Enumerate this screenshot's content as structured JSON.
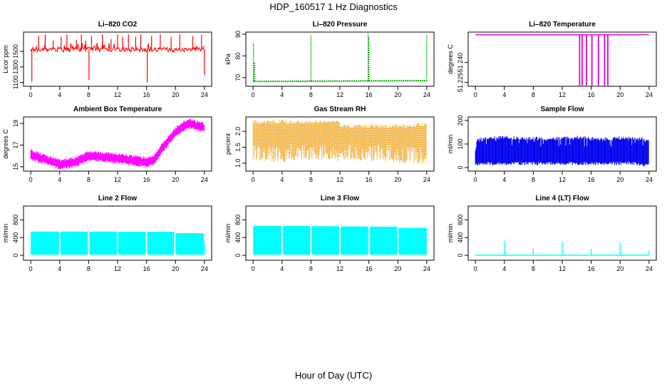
{
  "figure": {
    "title": "HDP_160517  1 Hz Diagnostics",
    "xlabel": "Hour of Day (UTC)"
  },
  "chart_data": [
    {
      "type": "line",
      "title": "Li–820 CO2",
      "ylabel": "Licor ppm",
      "color": "#ff0000",
      "xlim": [
        -1,
        25
      ],
      "ylim": [
        1050,
        1750
      ],
      "xticks": [
        0,
        4,
        8,
        12,
        16,
        20,
        24
      ],
      "yticks": [
        1100,
        1300,
        1500
      ],
      "series": [
        {
          "name": "CO2",
          "baseline": [
            [
              0,
              1525
            ],
            [
              24,
              1525
            ]
          ],
          "spikes": [
            [
              0.15,
              1110
            ],
            [
              1.1,
              1700
            ],
            [
              2.0,
              1720
            ],
            [
              3.1,
              1640
            ],
            [
              4.2,
              1690
            ],
            [
              5.0,
              1720
            ],
            [
              6.3,
              1650
            ],
            [
              7.0,
              1720
            ],
            [
              7.6,
              1640
            ],
            [
              8.05,
              1130
            ],
            [
              8.4,
              1700
            ],
            [
              9.9,
              1720
            ],
            [
              11.1,
              1660
            ],
            [
              12.0,
              1720
            ],
            [
              12.7,
              1690
            ],
            [
              13.5,
              1720
            ],
            [
              14.5,
              1690
            ],
            [
              15.2,
              1720
            ],
            [
              16.1,
              1100
            ],
            [
              16.7,
              1700
            ],
            [
              17.9,
              1720
            ],
            [
              19.4,
              1690
            ],
            [
              20.6,
              1720
            ],
            [
              22.4,
              1700
            ],
            [
              23.6,
              1720
            ],
            [
              24.0,
              1200
            ]
          ]
        }
      ]
    },
    {
      "type": "line",
      "title": "Li–820 Pressure",
      "ylabel": "kPa",
      "color": "#00aa00",
      "xlim": [
        -1,
        25
      ],
      "ylim": [
        66,
        91
      ],
      "xticks": [
        0,
        4,
        8,
        12,
        16,
        20,
        24
      ],
      "yticks": [
        70,
        80,
        90
      ],
      "series": [
        {
          "name": "Pressure",
          "baseline": [
            [
              0,
              68.2
            ],
            [
              24,
              68.6
            ]
          ],
          "spikes": [
            [
              0.05,
              86
            ],
            [
              0.2,
              77
            ],
            [
              8.0,
              89.5
            ],
            [
              15.9,
              90.5
            ],
            [
              16.0,
              89
            ],
            [
              24.0,
              89.5
            ]
          ]
        }
      ]
    },
    {
      "type": "line",
      "title": "Li–820 Temperature",
      "ylabel": "degrees C",
      "color": "#dd00dd",
      "xlim": [
        -1,
        25
      ],
      "ylim": [
        51.222,
        51.263
      ],
      "xticks": [
        0,
        4,
        8,
        12,
        16,
        20,
        24
      ],
      "yticks": [
        51.225,
        51.24
      ],
      "ytick_labels": [
        "51.225",
        "51.240"
      ],
      "series": [
        {
          "name": "Temperature",
          "baseline": [
            [
              0,
              51.261
            ],
            [
              24,
              51.261
            ]
          ],
          "drops": [
            14.4,
            14.75,
            15.35,
            16.1,
            17.0,
            17.85,
            18.3
          ],
          "drop_to": 51.222
        }
      ]
    },
    {
      "type": "line",
      "title": "Ambient Box Temperature",
      "ylabel": "degrees C",
      "color": "#ff00ff",
      "xlim": [
        -1,
        25
      ],
      "ylim": [
        14.6,
        19.6
      ],
      "xticks": [
        0,
        4,
        8,
        12,
        16,
        20,
        24
      ],
      "yticks": [
        15,
        17,
        19
      ],
      "series": [
        {
          "name": "Ambient",
          "band": 0.5,
          "points": [
            [
              0,
              16.1
            ],
            [
              2,
              15.7
            ],
            [
              4,
              15.2
            ],
            [
              6,
              15.4
            ],
            [
              7,
              15.7
            ],
            [
              8,
              16.0
            ],
            [
              9,
              16.0
            ],
            [
              10,
              15.9
            ],
            [
              12,
              15.8
            ],
            [
              14,
              15.6
            ],
            [
              16,
              15.4
            ],
            [
              17,
              15.6
            ],
            [
              18,
              16.6
            ],
            [
              19,
              17.4
            ],
            [
              20,
              18.2
            ],
            [
              21,
              18.7
            ],
            [
              22,
              19.0
            ],
            [
              23,
              18.8
            ],
            [
              24,
              18.6
            ]
          ]
        }
      ]
    },
    {
      "type": "line",
      "title": "Gas Stream RH",
      "ylabel": "percent",
      "color": "#ee9900",
      "xlim": [
        -1,
        25
      ],
      "ylim": [
        0.75,
        2.45
      ],
      "xticks": [
        0,
        4,
        8,
        12,
        16,
        20,
        24
      ],
      "yticks": [
        1.0,
        1.5,
        2.0
      ],
      "ytick_labels": [
        "1.0",
        "1.5",
        "2.0"
      ],
      "series": [
        {
          "name": "RH",
          "points": [
            [
              0,
              1.05,
              2.35
            ],
            [
              2,
              1.05,
              2.35
            ],
            [
              4,
              1.0,
              2.35
            ],
            [
              6,
              1.1,
              2.35
            ],
            [
              8,
              1.05,
              2.35
            ],
            [
              10,
              1.1,
              2.35
            ],
            [
              11.9,
              1.05,
              2.35
            ],
            [
              12.1,
              1.05,
              2.22
            ],
            [
              14,
              1.1,
              2.22
            ],
            [
              16,
              1.05,
              2.22
            ],
            [
              18,
              1.05,
              2.22
            ],
            [
              20,
              1.0,
              2.22
            ],
            [
              22,
              1.0,
              2.22
            ],
            [
              24,
              0.95,
              2.3
            ]
          ]
        }
      ]
    },
    {
      "type": "line",
      "title": "Sample Flow",
      "ylabel": "ml/min",
      "color": "#0000ee",
      "xlim": [
        -1,
        25
      ],
      "ylim": [
        -15,
        215
      ],
      "xticks": [
        0,
        4,
        8,
        12,
        16,
        20,
        24
      ],
      "yticks": [
        0,
        100,
        200
      ],
      "series": [
        {
          "name": "Sample",
          "points": [
            [
              0,
              5,
              118
            ],
            [
              1,
              10,
              130
            ],
            [
              2,
              10,
              132
            ],
            [
              4,
              10,
              136
            ],
            [
              6,
              10,
              132
            ],
            [
              8,
              10,
              132
            ],
            [
              10,
              10,
              128
            ],
            [
              12,
              10,
              132
            ],
            [
              14,
              10,
              136
            ],
            [
              16,
              10,
              130
            ],
            [
              18,
              10,
              128
            ],
            [
              20,
              10,
              132
            ],
            [
              22,
              10,
              130
            ],
            [
              24,
              0,
              125
            ]
          ]
        }
      ]
    },
    {
      "type": "area",
      "title": "Line 2 Flow",
      "ylabel": "ml/min",
      "color": "#00ffff",
      "xlim": [
        -1,
        25
      ],
      "ylim": [
        -110,
        1110
      ],
      "xticks": [
        0,
        4,
        8,
        12,
        16,
        20,
        24
      ],
      "yticks": [
        0,
        400,
        800
      ],
      "series": [
        {
          "name": "Line 2",
          "segments": [
            [
              0,
              3.9,
              15,
              535
            ],
            [
              4.1,
              7.9,
              15,
              535
            ],
            [
              8.1,
              11.9,
              15,
              535
            ],
            [
              12.1,
              15.9,
              15,
              530
            ],
            [
              16.1,
              19.8,
              15,
              530
            ],
            [
              20.0,
              23.9,
              15,
              500
            ]
          ],
          "spikes": [
            [
              24.0,
              300
            ]
          ]
        }
      ]
    },
    {
      "type": "area",
      "title": "Line 3 Flow",
      "ylabel": "ml/min",
      "color": "#00ffff",
      "xlim": [
        -1,
        25
      ],
      "ylim": [
        -110,
        1110
      ],
      "xticks": [
        0,
        4,
        8,
        12,
        16,
        20,
        24
      ],
      "yticks": [
        0,
        400,
        800
      ],
      "series": [
        {
          "name": "Line 3",
          "segments": [
            [
              0,
              3.9,
              15,
              660
            ],
            [
              4.1,
              7.9,
              15,
              660
            ],
            [
              8.1,
              11.9,
              15,
              655
            ],
            [
              12.1,
              15.9,
              15,
              650
            ],
            [
              16.1,
              19.9,
              15,
              645
            ],
            [
              20.1,
              24.0,
              15,
              620
            ]
          ],
          "spikes": []
        }
      ]
    },
    {
      "type": "line",
      "title": "Line 4 (LT) Flow",
      "ylabel": "ml/min",
      "color": "#00ffff",
      "xlim": [
        -1,
        25
      ],
      "ylim": [
        -110,
        1110
      ],
      "xticks": [
        0,
        4,
        8,
        12,
        16,
        20,
        24
      ],
      "yticks": [
        0,
        400,
        800
      ],
      "series": [
        {
          "name": "Line 4",
          "baseline": [
            [
              0,
              5
            ],
            [
              24,
              5
            ]
          ],
          "spikes": [
            [
              4.0,
              310
            ],
            [
              8.0,
              150
            ],
            [
              12.0,
              290
            ],
            [
              16.0,
              145
            ],
            [
              20.0,
              280
            ],
            [
              24.0,
              120
            ]
          ]
        }
      ]
    }
  ]
}
